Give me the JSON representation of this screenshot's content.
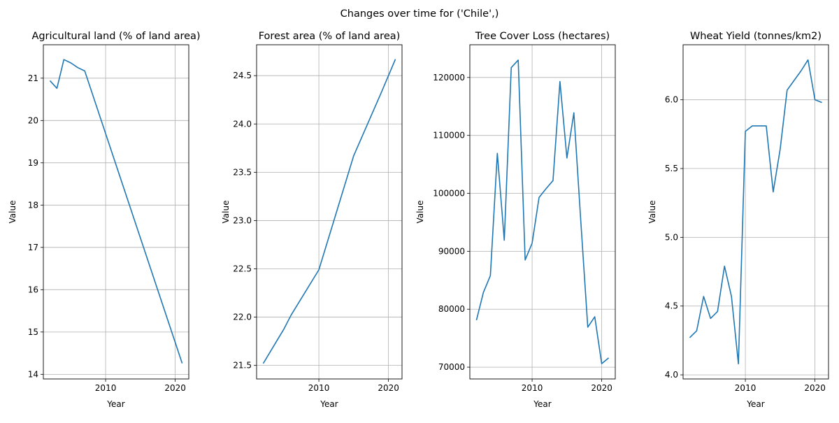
{
  "suptitle": "Changes over time for ('Chile',)",
  "line_color": "#1f77b4",
  "grid_color": "#b0b0b0",
  "chart_data": [
    {
      "type": "line",
      "title": "Agricultural land (% of land area)",
      "xlabel": "Year",
      "ylabel": "Value",
      "xlim": [
        2001.05,
        2021.95
      ],
      "ylim": [
        13.89,
        21.79
      ],
      "xticks": [
        2010,
        2020
      ],
      "yticks": [
        14,
        15,
        16,
        17,
        18,
        19,
        20,
        21
      ],
      "grid": true,
      "x": [
        2002,
        2003,
        2004,
        2005,
        2006,
        2007,
        2021
      ],
      "y": [
        20.94,
        20.76,
        21.44,
        21.36,
        21.25,
        21.17,
        14.26
      ]
    },
    {
      "type": "line",
      "title": "Forest area (% of land area)",
      "xlabel": "Year",
      "ylabel": "Value",
      "xlim": [
        2001.05,
        2021.95
      ],
      "ylim": [
        21.36,
        24.82
      ],
      "xticks": [
        2010,
        2020
      ],
      "yticks": [
        21.5,
        22.0,
        22.5,
        23.0,
        23.5,
        24.0,
        24.5
      ],
      "grid": true,
      "x": [
        2002,
        2005,
        2006,
        2010,
        2015,
        2019,
        2021
      ],
      "y": [
        21.52,
        21.88,
        22.02,
        22.49,
        23.67,
        24.33,
        24.67
      ]
    },
    {
      "type": "line",
      "title": "Tree Cover Loss (hectares)",
      "xlabel": "Year",
      "ylabel": "Value",
      "xlim": [
        2001.05,
        2021.95
      ],
      "ylim": [
        67960,
        125650
      ],
      "xticks": [
        2010,
        2020
      ],
      "yticks": [
        70000,
        80000,
        90000,
        100000,
        110000,
        120000
      ],
      "grid": true,
      "x": [
        2002,
        2003,
        2004,
        2005,
        2006,
        2007,
        2008,
        2009,
        2010,
        2011,
        2012,
        2013,
        2014,
        2015,
        2016,
        2017,
        2018,
        2019,
        2020,
        2021
      ],
      "y": [
        78100,
        82900,
        85800,
        106900,
        91900,
        121700,
        123000,
        88500,
        91400,
        99300,
        100800,
        102200,
        119300,
        106100,
        113900,
        95100,
        76900,
        78700,
        70600,
        71600
      ]
    },
    {
      "type": "line",
      "title": "Wheat Yield (tonnes/km2)",
      "xlabel": "Year",
      "ylabel": "Value",
      "xlim": [
        2001.05,
        2021.95
      ],
      "ylim": [
        3.97,
        6.4
      ],
      "xticks": [
        2010,
        2020
      ],
      "yticks": [
        4.0,
        4.5,
        5.0,
        5.5,
        6.0
      ],
      "grid": true,
      "x": [
        2002,
        2003,
        2004,
        2005,
        2006,
        2007,
        2008,
        2009,
        2010,
        2011,
        2012,
        2013,
        2014,
        2015,
        2016,
        2017,
        2018,
        2019,
        2020,
        2021
      ],
      "y": [
        4.27,
        4.32,
        4.57,
        4.41,
        4.46,
        4.79,
        4.57,
        4.08,
        5.77,
        5.81,
        5.81,
        5.81,
        5.33,
        5.64,
        6.07,
        6.14,
        6.21,
        6.29,
        6.0,
        5.98
      ]
    }
  ]
}
